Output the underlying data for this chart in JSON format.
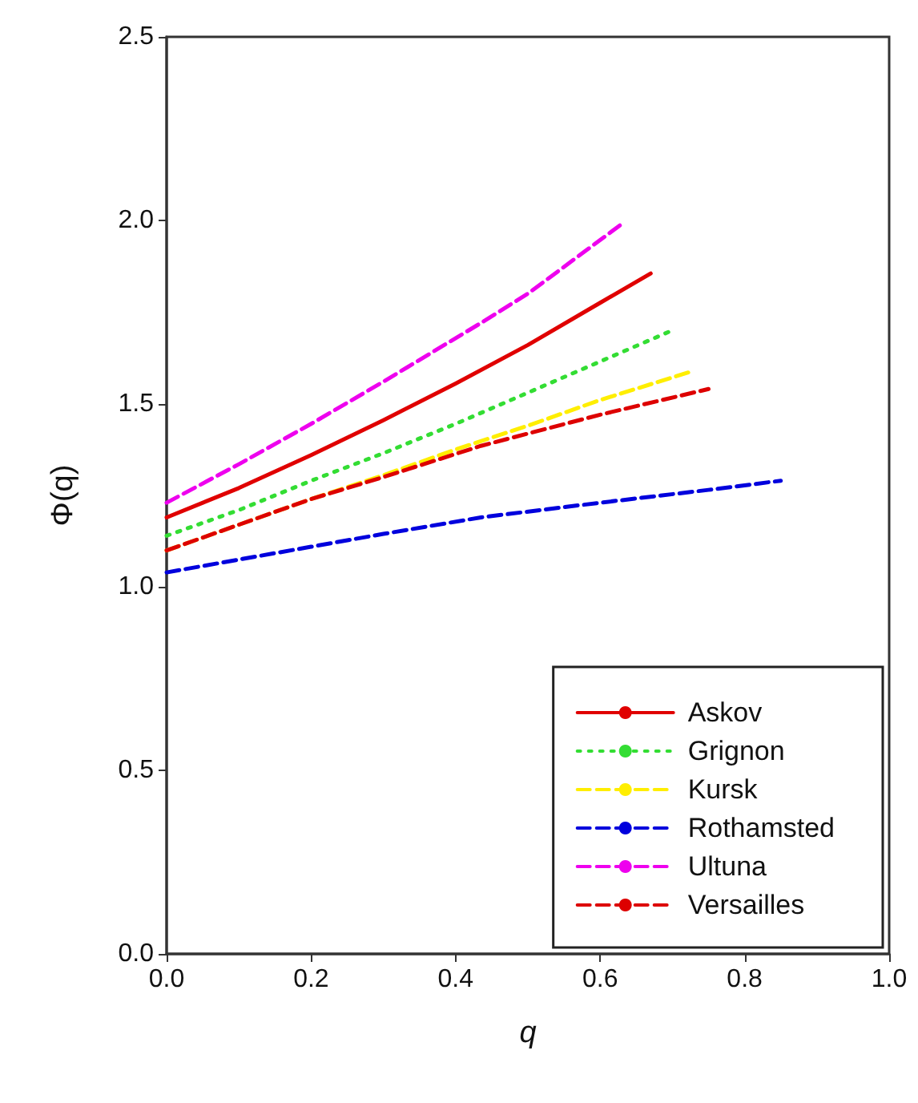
{
  "chart_data": {
    "type": "line",
    "xlabel": "q",
    "ylabel": "Φ(q)",
    "xlim": [
      0,
      1
    ],
    "xticks": [
      {
        "value": 0,
        "label": "0.0"
      },
      {
        "value": 0.2,
        "label": "0.2"
      },
      {
        "value": 0.4,
        "label": "0.4"
      },
      {
        "value": 0.6,
        "label": "0.6"
      },
      {
        "value": 0.8,
        "label": "0.8"
      },
      {
        "value": 1,
        "label": "1.0"
      }
    ],
    "ylim": [
      0,
      2.5
    ],
    "yticks": [
      {
        "value": 0,
        "label": "0.0"
      },
      {
        "value": 0.5,
        "label": "0.5"
      },
      {
        "value": 1,
        "label": "1.0"
      },
      {
        "value": 1.5,
        "label": "1.5"
      },
      {
        "value": 2,
        "label": "2.0"
      },
      {
        "value": 2.5,
        "label": "2.5"
      }
    ],
    "grid": false,
    "legend": "bottom right",
    "marker": "none",
    "series": [
      {
        "name": "Askov",
        "color": "#e00000",
        "line_style": "solid",
        "x": [
          0,
          0.1,
          0.2,
          0.3,
          0.4,
          0.5,
          0.6,
          0.67
        ],
        "values": [
          1.19,
          1.27,
          1.36,
          1.455,
          1.555,
          1.66,
          1.775,
          1.855
        ]
      },
      {
        "name": "Grignon",
        "color": "#33dd33",
        "line_style": "dotted",
        "x": [
          0,
          0.1,
          0.2,
          0.3,
          0.4,
          0.5,
          0.6,
          0.7
        ],
        "values": [
          1.14,
          1.21,
          1.29,
          1.365,
          1.445,
          1.53,
          1.615,
          1.7
        ]
      },
      {
        "name": "Kursk",
        "color": "#ffee00",
        "line_style": "dashed",
        "x": [
          0,
          0.1,
          0.2,
          0.3,
          0.4,
          0.5,
          0.6,
          0.73
        ],
        "values": [
          1.1,
          1.17,
          1.24,
          1.305,
          1.375,
          1.44,
          1.51,
          1.59
        ]
      },
      {
        "name": "Rothamsted",
        "color": "#0000dd",
        "line_style": "dashed",
        "x": [
          0,
          0.1,
          0.2,
          0.3,
          0.435,
          0.6,
          0.75,
          0.85
        ],
        "values": [
          1.04,
          1.075,
          1.11,
          1.145,
          1.19,
          1.23,
          1.265,
          1.29
        ]
      },
      {
        "name": "Ultuna",
        "color": "#ee00ee",
        "line_style": "dashed",
        "x": [
          0,
          0.1,
          0.2,
          0.3,
          0.435,
          0.5,
          0.63
        ],
        "values": [
          1.23,
          1.335,
          1.445,
          1.56,
          1.72,
          1.8,
          1.99
        ]
      },
      {
        "name": "Versailles",
        "color": "#dd0000",
        "line_style": "dashed",
        "x": [
          0,
          0.1,
          0.2,
          0.3,
          0.435,
          0.6,
          0.75
        ],
        "values": [
          1.1,
          1.17,
          1.24,
          1.3,
          1.385,
          1.47,
          1.54
        ]
      }
    ]
  }
}
